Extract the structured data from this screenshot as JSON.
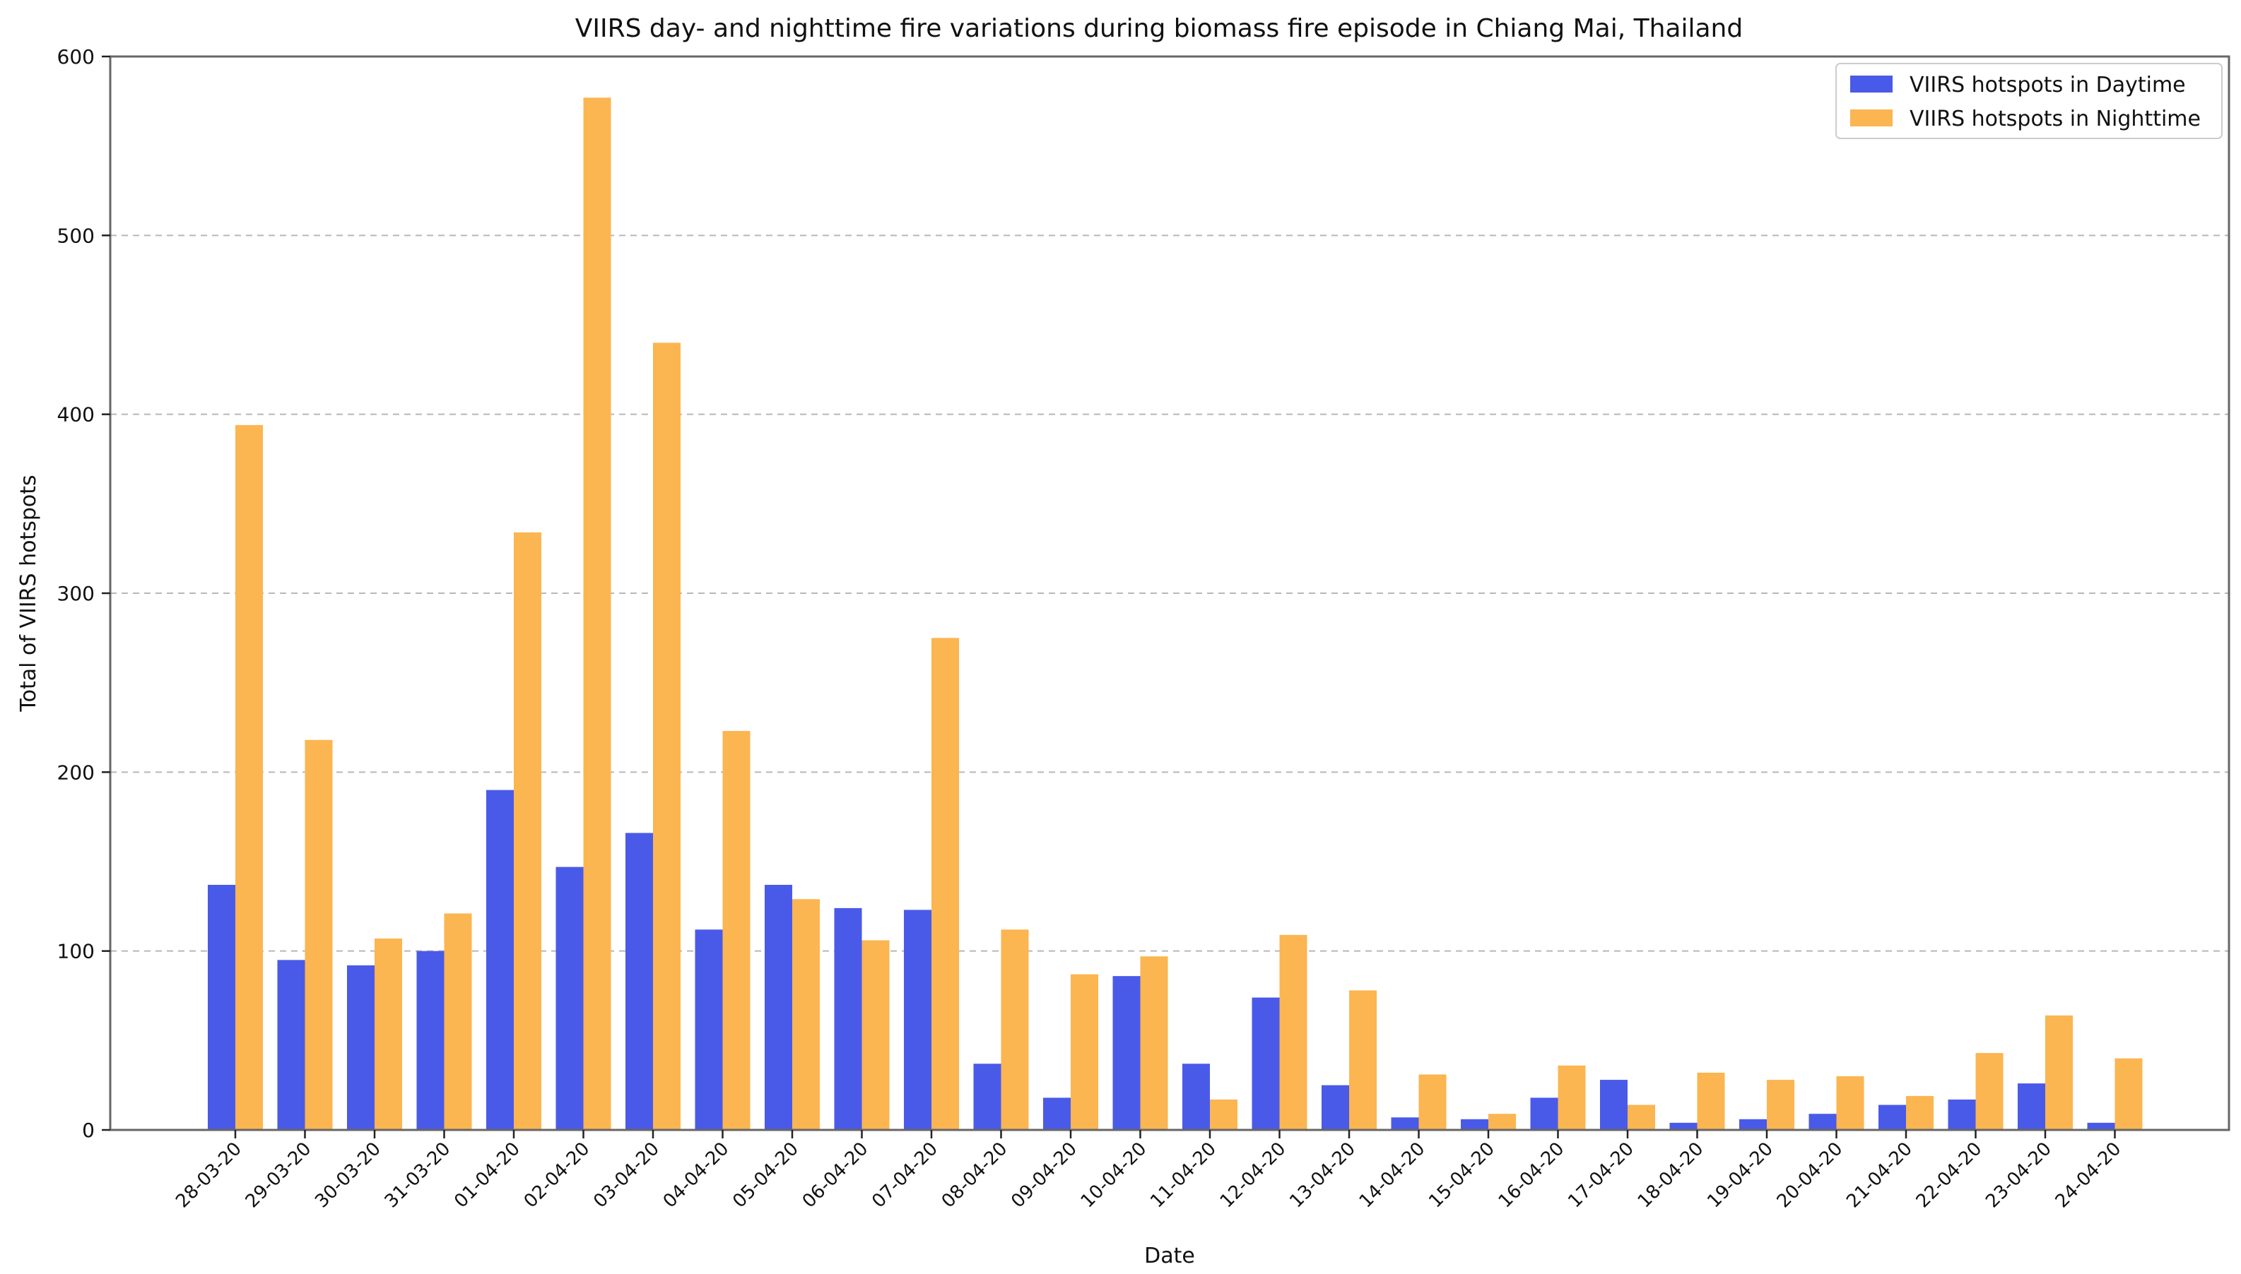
{
  "chart_data": {
    "type": "bar",
    "title": "VIIRS day- and nighttime fire variations during biomass fire episode in Chiang Mai, Thailand",
    "xlabel": "Date",
    "ylabel": "Total of VIIRS hotspots",
    "ylim": [
      0,
      600
    ],
    "yticks": [
      "0",
      "100",
      "200",
      "300",
      "400",
      "500",
      "600"
    ],
    "grid": "horizontal dashed",
    "legend_position": "top-right",
    "categories": [
      "28-03-20",
      "29-03-20",
      "30-03-20",
      "31-03-20",
      "01-04-20",
      "02-04-20",
      "03-04-20",
      "04-04-20",
      "05-04-20",
      "06-04-20",
      "07-04-20",
      "08-04-20",
      "09-04-20",
      "10-04-20",
      "11-04-20",
      "12-04-20",
      "13-04-20",
      "14-04-20",
      "15-04-20",
      "16-04-20",
      "17-04-20",
      "18-04-20",
      "19-04-20",
      "20-04-20",
      "21-04-20",
      "22-04-20",
      "23-04-20",
      "24-04-20"
    ],
    "series": [
      {
        "name": "VIIRS hotspots in Daytime",
        "color": "#4a5ae8",
        "values": [
          137,
          95,
          92,
          100,
          190,
          147,
          166,
          112,
          137,
          124,
          123,
          37,
          18,
          86,
          37,
          74,
          25,
          7,
          6,
          18,
          28,
          4,
          6,
          9,
          14,
          17,
          26,
          4
        ]
      },
      {
        "name": "VIIRS hotspots in Nighttime",
        "color": "#fbb551",
        "values": [
          394,
          218,
          107,
          121,
          334,
          577,
          440,
          223,
          129,
          106,
          275,
          112,
          87,
          97,
          17,
          109,
          78,
          31,
          9,
          36,
          14,
          32,
          28,
          30,
          19,
          43,
          64,
          40
        ]
      }
    ]
  }
}
